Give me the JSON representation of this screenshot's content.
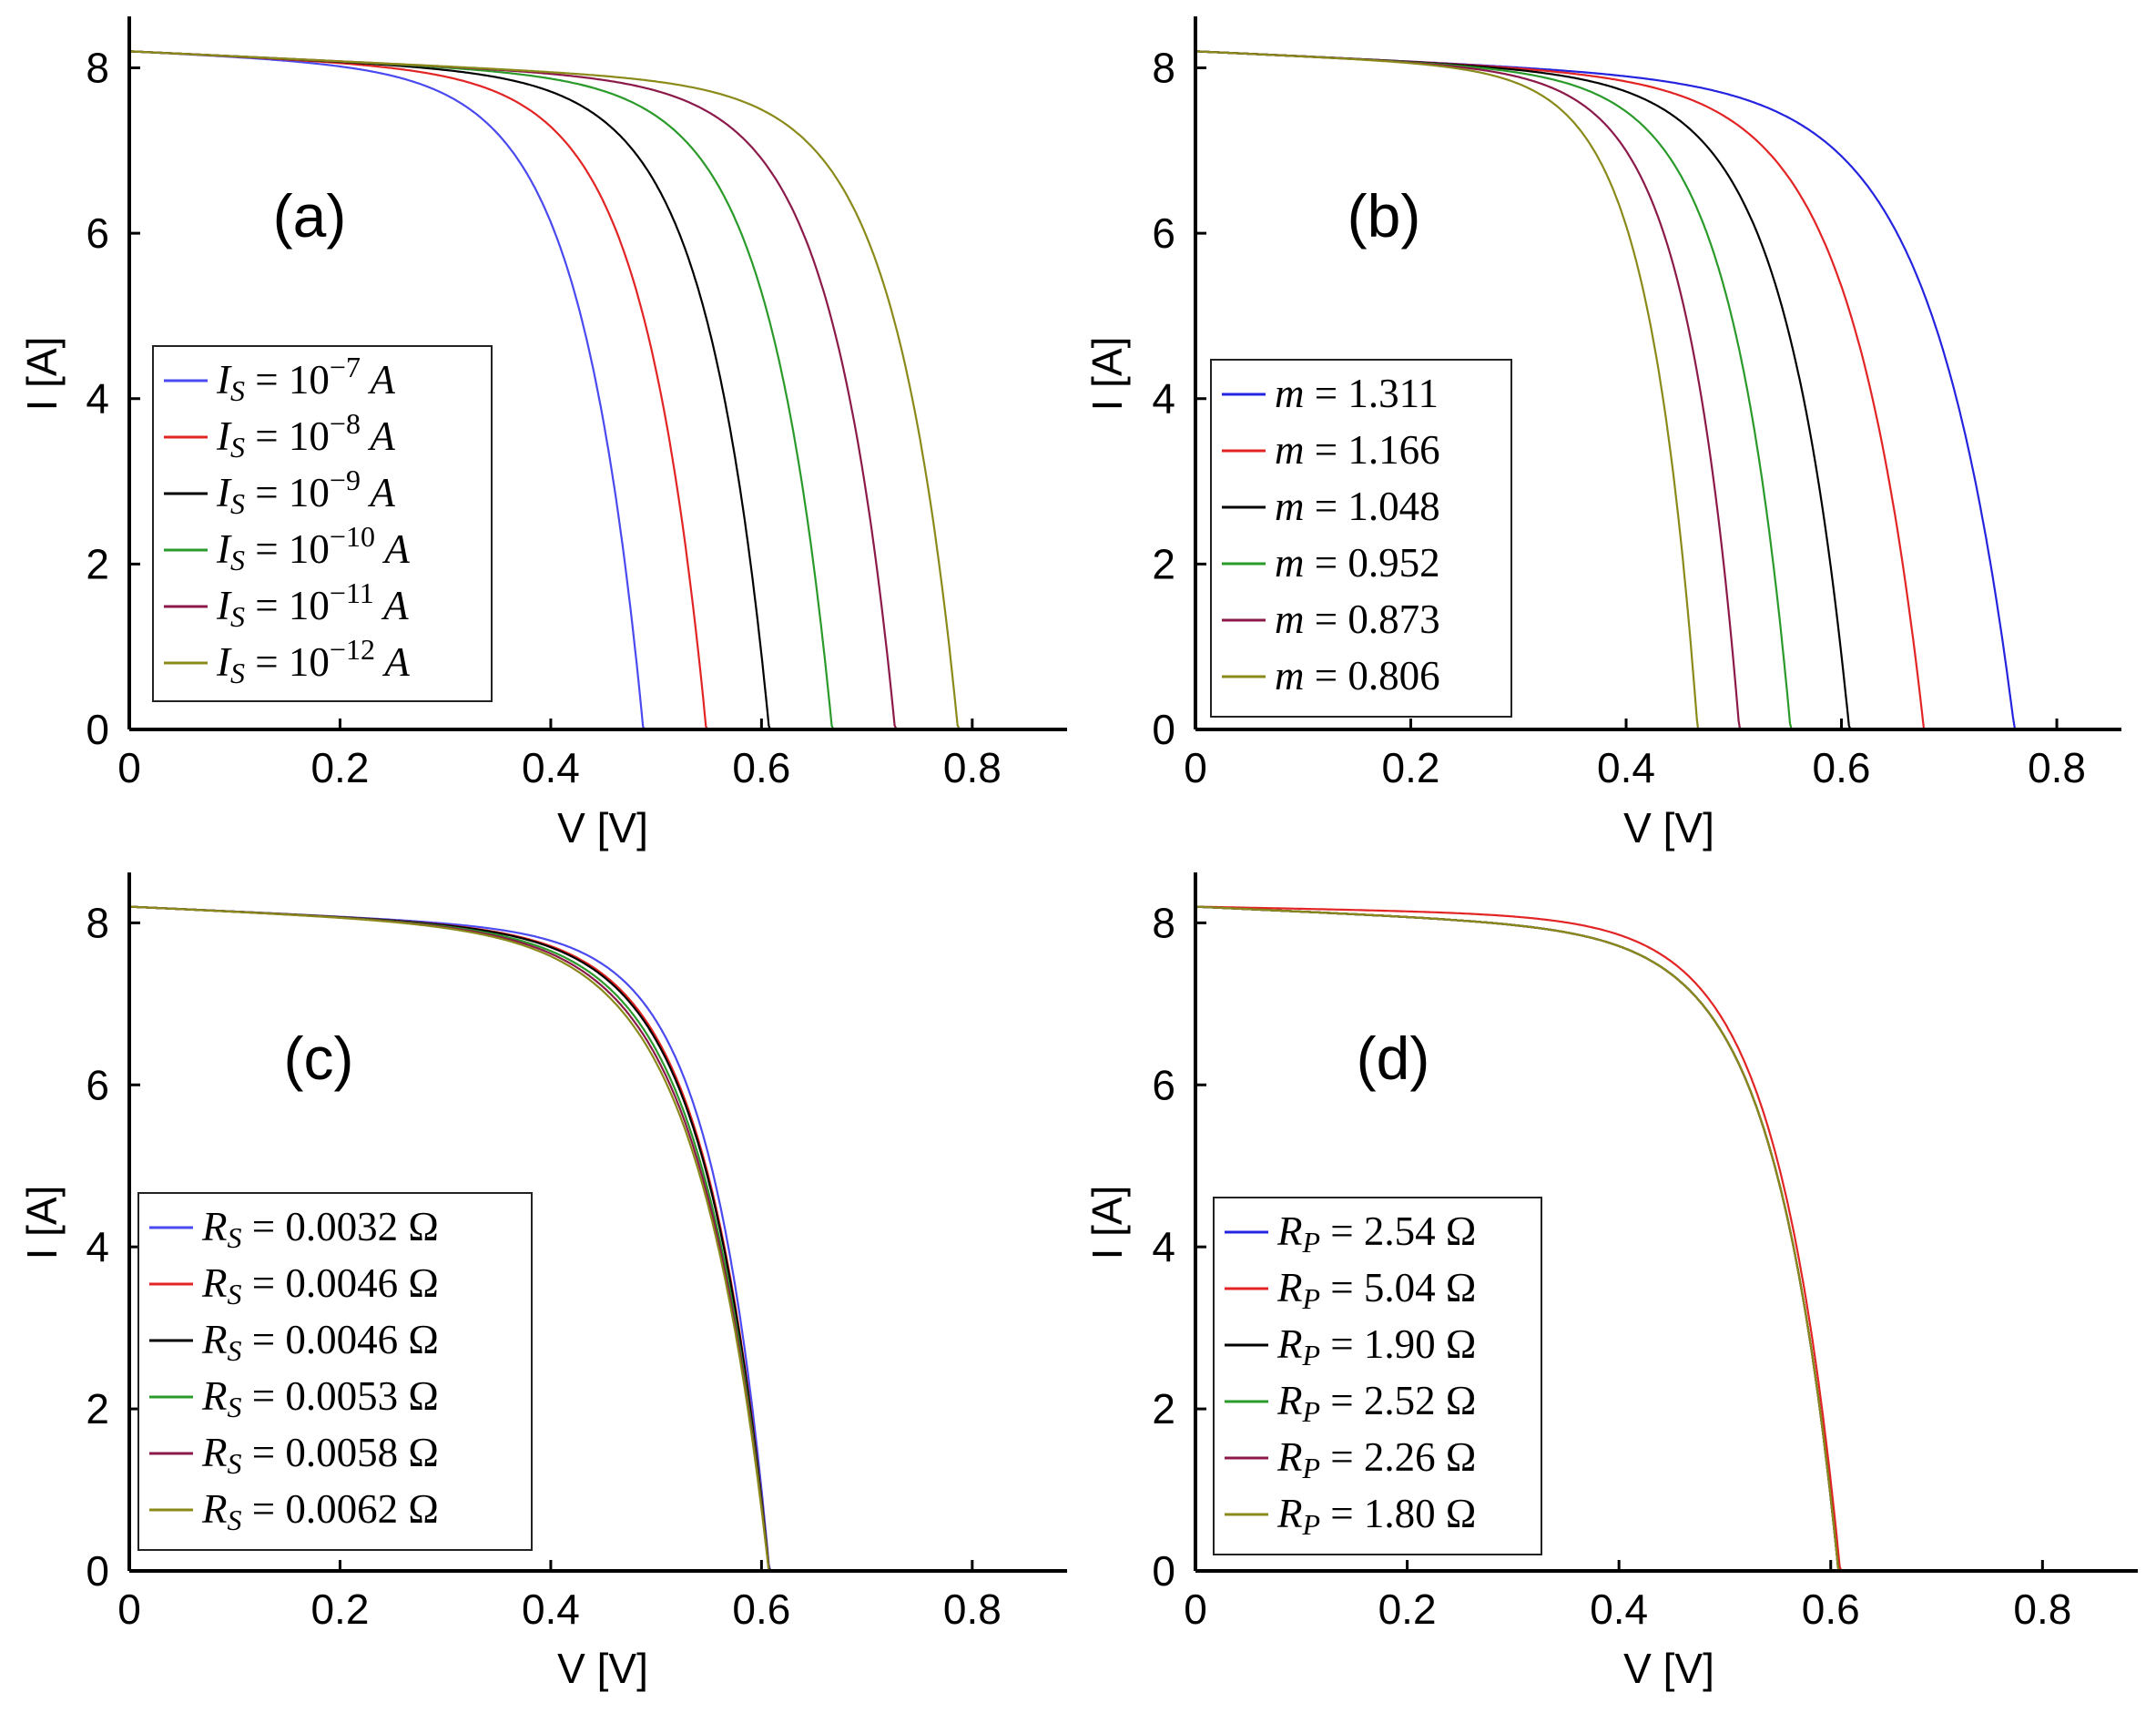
{
  "chart_data": [
    {
      "panel": "(a)",
      "type": "line",
      "xlabel": "V [V]",
      "ylabel": "I [A]",
      "xlim": [
        0,
        0.89
      ],
      "ylim": [
        0,
        8.6
      ],
      "xticks": [
        "0",
        "0.2",
        "0.4",
        "0.6",
        "0.8"
      ],
      "yticks": [
        "0",
        "2",
        "4",
        "6",
        "8"
      ],
      "legend_position": "lower-left",
      "series": [
        {
          "label": "I_S = 10^-7 A",
          "sub": "S",
          "base": "10",
          "exp": "−7",
          "unit": "A",
          "color": "#4a4af0",
          "voc": 0.49,
          "dip": 0.06
        },
        {
          "label": "I_S = 10^-8 A",
          "sub": "S",
          "base": "10",
          "exp": "−8",
          "unit": "A",
          "color": "#e32424",
          "voc": 0.55,
          "dip": 0.06
        },
        {
          "label": "I_S = 10^-9 A",
          "sub": "S",
          "base": "10",
          "exp": "−9",
          "unit": "A",
          "color": "#000000",
          "voc": 0.61,
          "dip": 0.06
        },
        {
          "label": "I_S = 10^-10 A",
          "sub": "S",
          "base": "10",
          "exp": "−10",
          "unit": "A",
          "color": "#2a9a2a",
          "voc": 0.67,
          "dip": 0.06
        },
        {
          "label": "I_S = 10^-11 A",
          "sub": "S",
          "base": "10",
          "exp": "−11",
          "unit": "A",
          "color": "#8b1a4a",
          "voc": 0.73,
          "dip": 0.06
        },
        {
          "label": "I_S = 10^-12 A",
          "sub": "S",
          "base": "10",
          "exp": "−12",
          "unit": "A",
          "color": "#8a8a1a",
          "voc": 0.79,
          "dip": 0.06
        }
      ]
    },
    {
      "panel": "(b)",
      "type": "line",
      "xlabel": "V [V]",
      "ylabel": "I [A]",
      "xlim": [
        0,
        0.86
      ],
      "ylim": [
        0,
        8.6
      ],
      "xticks": [
        "0",
        "0.2",
        "0.4",
        "0.6",
        "0.8"
      ],
      "yticks": [
        "0",
        "2",
        "4",
        "6",
        "8"
      ],
      "legend_position": "lower-left",
      "series": [
        {
          "label": "m = 1.311",
          "color": "#2424e0",
          "voc": 0.765,
          "dip": 0.075
        },
        {
          "label": "m = 1.166",
          "color": "#e32424",
          "voc": 0.68,
          "dip": 0.067
        },
        {
          "label": "m = 1.048",
          "color": "#000000",
          "voc": 0.61,
          "dip": 0.06
        },
        {
          "label": "m = 0.952",
          "color": "#2a9a2a",
          "voc": 0.555,
          "dip": 0.055
        },
        {
          "label": "m = 0.873",
          "color": "#8b1a4a",
          "voc": 0.507,
          "dip": 0.05
        },
        {
          "label": "m = 0.806",
          "color": "#8a8a1a",
          "voc": 0.468,
          "dip": 0.046
        }
      ]
    },
    {
      "panel": "(c)",
      "type": "line",
      "xlabel": "V [V]",
      "ylabel": "I [A]",
      "xlim": [
        0,
        0.89
      ],
      "ylim": [
        0,
        8.6
      ],
      "xticks": [
        "0",
        "0.2",
        "0.4",
        "0.6",
        "0.8"
      ],
      "yticks": [
        "0",
        "2",
        "4",
        "6",
        "8"
      ],
      "legend_position": "lower-left",
      "series": [
        {
          "label": "R_S = 0.0032 Ω",
          "sub": "S",
          "value": "0.0032",
          "color": "#4a4af0",
          "voc": 0.61,
          "dip": 0.055
        },
        {
          "label": "R_S = 0.0046 Ω",
          "sub": "S",
          "value": "0.0046",
          "color": "#e32424",
          "voc": 0.61,
          "dip": 0.06
        },
        {
          "label": "R_S = 0.0046 Ω",
          "sub": "S",
          "value": "0.0046",
          "color": "#000000",
          "voc": 0.61,
          "dip": 0.061
        },
        {
          "label": "R_S = 0.0053 Ω",
          "sub": "S",
          "value": "0.0053",
          "color": "#2a9a2a",
          "voc": 0.61,
          "dip": 0.064
        },
        {
          "label": "R_S = 0.0058 Ω",
          "sub": "S",
          "value": "0.0058",
          "color": "#8b1a4a",
          "voc": 0.61,
          "dip": 0.066
        },
        {
          "label": "R_S = 0.0062 Ω",
          "sub": "S",
          "value": "0.0062",
          "color": "#8a8a1a",
          "voc": 0.61,
          "dip": 0.068
        }
      ]
    },
    {
      "panel": "(d)",
      "type": "line",
      "xlabel": "V [V]",
      "ylabel": "I [A]",
      "xlim": [
        0,
        0.89
      ],
      "ylim": [
        0,
        8.6
      ],
      "xticks": [
        "0",
        "0.2",
        "0.4",
        "0.6",
        "0.8"
      ],
      "yticks": [
        "0",
        "2",
        "4",
        "6",
        "8"
      ],
      "legend_position": "lower-left",
      "series": [
        {
          "label": "R_P = 2.54 Ω",
          "sub": "P",
          "value": "2.54",
          "color": "#2424e0",
          "voc": 0.61,
          "dip": 0.06
        },
        {
          "label": "R_P = 5.04 Ω",
          "sub": "P",
          "value": "5.04",
          "color": "#e32424",
          "voc": 0.61,
          "dip": 0.06
        },
        {
          "label": "R_P = 1.90 Ω",
          "sub": "P",
          "value": "1.90",
          "color": "#000000",
          "voc": 0.61,
          "dip": 0.06
        },
        {
          "label": "R_P = 2.52 Ω",
          "sub": "P",
          "value": "2.52",
          "color": "#2a9a2a",
          "voc": 0.61,
          "dip": 0.06
        },
        {
          "label": "R_P = 2.26 Ω",
          "sub": "P",
          "value": "2.26",
          "color": "#8b1a4a",
          "voc": 0.61,
          "dip": 0.06
        },
        {
          "label": "R_P = 1.80 Ω",
          "sub": "P",
          "value": "1.80",
          "color": "#8a8a1a",
          "voc": 0.61,
          "dip": 0.06
        }
      ]
    }
  ],
  "curve_model": {
    "isc": 8.2,
    "slope": 0.6,
    "slope_rp_4": 0.25
  }
}
